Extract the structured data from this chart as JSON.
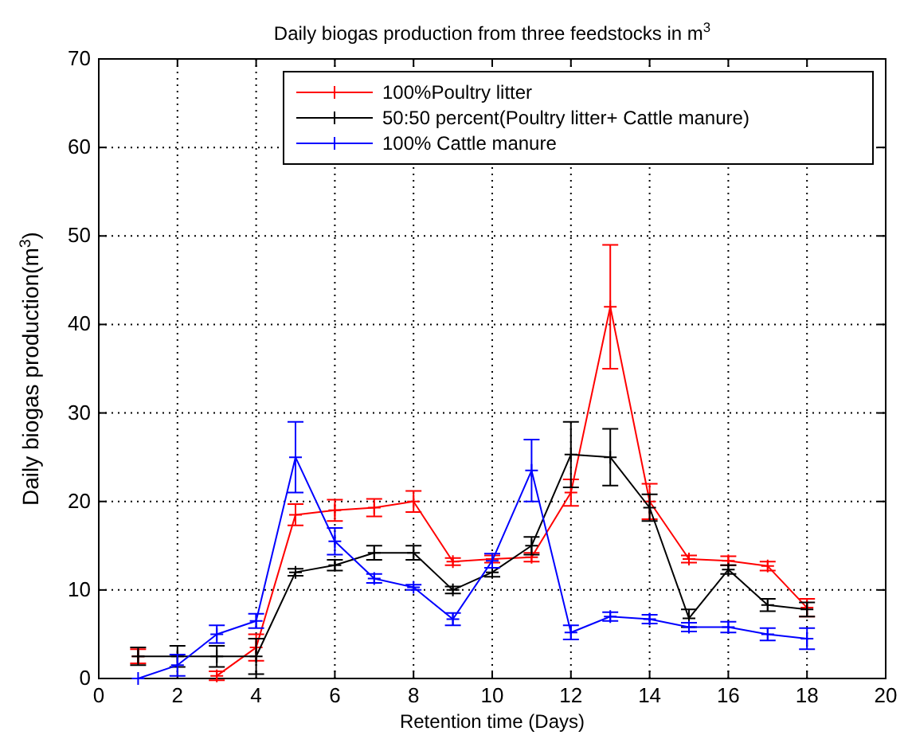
{
  "chart_data": {
    "type": "line",
    "title": "Daily biogas production from three feedstocks in m$^{3}$",
    "xlabel": "Retention time (Days)",
    "ylabel": "Daily biogas production(m$^{3}$)",
    "x": [
      1,
      2,
      3,
      4,
      5,
      6,
      7,
      8,
      9,
      10,
      11,
      12,
      13,
      14,
      15,
      16,
      17,
      18
    ],
    "xlim": [
      0,
      20
    ],
    "xticks": [
      0,
      2,
      4,
      6,
      8,
      10,
      12,
      14,
      16,
      18,
      20
    ],
    "ylim": [
      0,
      70
    ],
    "yticks": [
      0,
      10,
      20,
      30,
      40,
      50,
      60,
      70
    ],
    "grid": true,
    "legend": "top right",
    "marker": "cross",
    "line_style": "solid",
    "series": [
      {
        "name": "100%Poultry litter",
        "color": "#ff0000",
        "values": [
          2.5,
          null,
          0.3,
          3.5,
          18.5,
          19,
          19.3,
          20,
          13.2,
          13.5,
          13.7,
          21,
          42,
          20,
          13.5,
          13.3,
          12.7,
          8
        ],
        "errors": [
          0.8,
          null,
          0.5,
          1.5,
          1.2,
          1.2,
          1,
          1.2,
          0.4,
          0.4,
          0.5,
          1.5,
          7,
          2,
          0.4,
          0.5,
          0.5,
          1
        ]
      },
      {
        "name": "50:50 percent(Poultry litter+ Cattle manure)",
        "color": "#000000",
        "values": [
          2.5,
          2.5,
          2.5,
          2.5,
          12,
          12.8,
          14.2,
          14.2,
          10,
          12,
          15,
          25.3,
          25,
          19.3,
          6.8,
          12.3,
          8.3,
          7.8
        ],
        "errors": [
          1,
          1.2,
          1.2,
          2,
          0.4,
          0.6,
          0.8,
          0.8,
          0.4,
          0.5,
          1,
          3.7,
          3.2,
          1.5,
          1,
          0.5,
          0.7,
          0.8
        ]
      },
      {
        "name": "100% Cattle manure",
        "color": "#0000ff",
        "values": [
          0,
          1.5,
          5,
          6.5,
          25,
          15.5,
          11.3,
          10.3,
          6.7,
          13.3,
          23.5,
          5.2,
          7,
          6.7,
          5.8,
          5.8,
          5,
          4.5
        ],
        "errors": [
          null,
          1.2,
          1,
          0.8,
          4,
          1.5,
          0.5,
          0.3,
          0.7,
          0.8,
          3.5,
          0.8,
          0.5,
          0.5,
          0.5,
          0.6,
          0.7,
          1.2
        ]
      }
    ]
  }
}
